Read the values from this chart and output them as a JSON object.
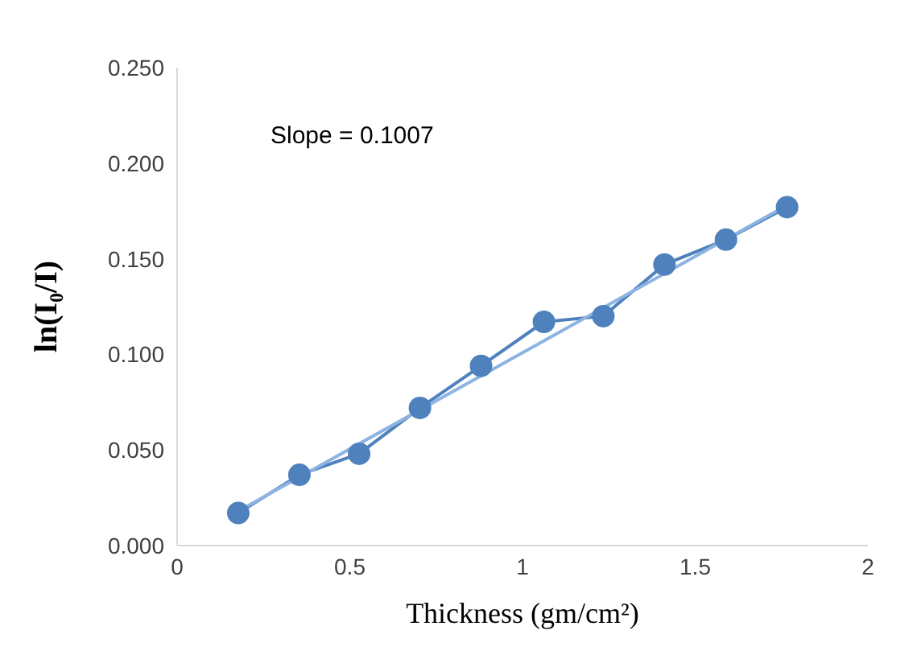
{
  "chart_data": {
    "type": "line",
    "xlabel": "Thickness  (gm/cm²)",
    "ylabel": "ln(I₀/I)",
    "annotations": [
      "Slope = 0.1007"
    ],
    "xlim": [
      0,
      2
    ],
    "xticks": [
      0,
      0.5,
      1,
      1.5,
      2
    ],
    "ylim": [
      0,
      0.25
    ],
    "yticks": [
      {
        "value": 0,
        "label": "0.000"
      },
      {
        "value": 0.05,
        "label": "0.050"
      },
      {
        "value": 0.1,
        "label": "0.100"
      },
      {
        "value": 0.15,
        "label": "0.150"
      },
      {
        "value": 0.2,
        "label": "0.200"
      },
      {
        "value": 0.25,
        "label": "0.250"
      }
    ],
    "marker": "circle",
    "grid": false,
    "series": [
      {
        "color": "#4f81bd",
        "x": [
          0.177,
          0.354,
          0.527,
          0.703,
          0.88,
          1.062,
          1.234,
          1.411,
          1.589,
          1.766
        ],
        "values": [
          0.017,
          0.037,
          0.048,
          0.072,
          0.094,
          0.117,
          0.12,
          0.147,
          0.16,
          0.177
        ]
      },
      {
        "color": "#8db3e2",
        "marker": "none",
        "x": [
          0.177,
          1.766
        ],
        "values": [
          0.018,
          0.178
        ]
      }
    ]
  }
}
